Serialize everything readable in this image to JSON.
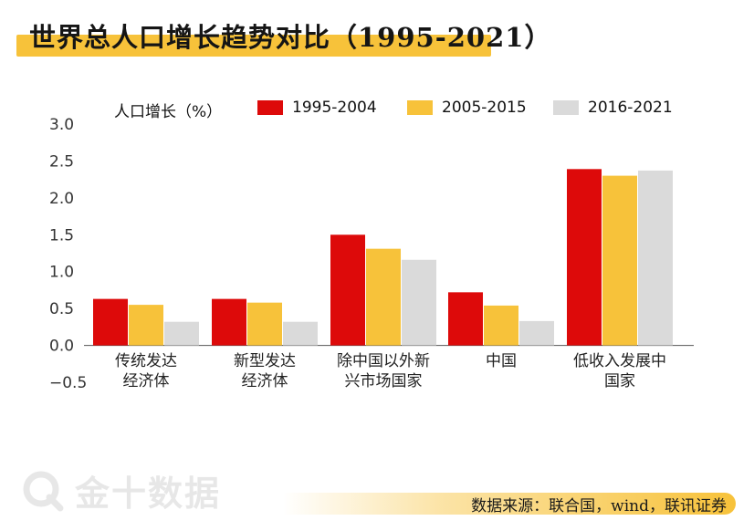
{
  "title": "世界总人口增长趋势对比（1995-2021）",
  "watermark": "金十数据",
  "source": "数据来源：联合国，wind，联讯证券",
  "colors": {
    "s1": "#dd0a0a",
    "s2": "#f7c23a",
    "s3": "#dadada",
    "accent": "#f7c23a"
  },
  "chart_data": {
    "type": "bar",
    "title": "世界总人口增长趋势对比（1995-2021）",
    "ylabel": "人口增长（%）",
    "xlabel": "",
    "ylim": [
      -0.5,
      3.0
    ],
    "yticks": [
      "3.0",
      "2.5",
      "2.0",
      "1.5",
      "1.0",
      "0.5",
      "0.0",
      "−0.5"
    ],
    "ytick_values": [
      3.0,
      2.5,
      2.0,
      1.5,
      1.0,
      0.5,
      0.0,
      -0.5
    ],
    "categories": [
      [
        "传统发达",
        "经济体"
      ],
      [
        "新型发达",
        "经济体"
      ],
      [
        "除中国以外新",
        "兴市场国家"
      ],
      [
        "中国"
      ],
      [
        "低收入发展中",
        "国家"
      ]
    ],
    "series": [
      {
        "name": "1995-2004",
        "values": [
          0.63,
          0.63,
          1.5,
          0.72,
          2.39
        ]
      },
      {
        "name": "2005-2015",
        "values": [
          0.55,
          0.58,
          1.31,
          0.54,
          2.3
        ]
      },
      {
        "name": "2016-2021",
        "values": [
          0.32,
          0.32,
          1.16,
          0.33,
          2.37
        ]
      }
    ],
    "legend_position": "top"
  }
}
